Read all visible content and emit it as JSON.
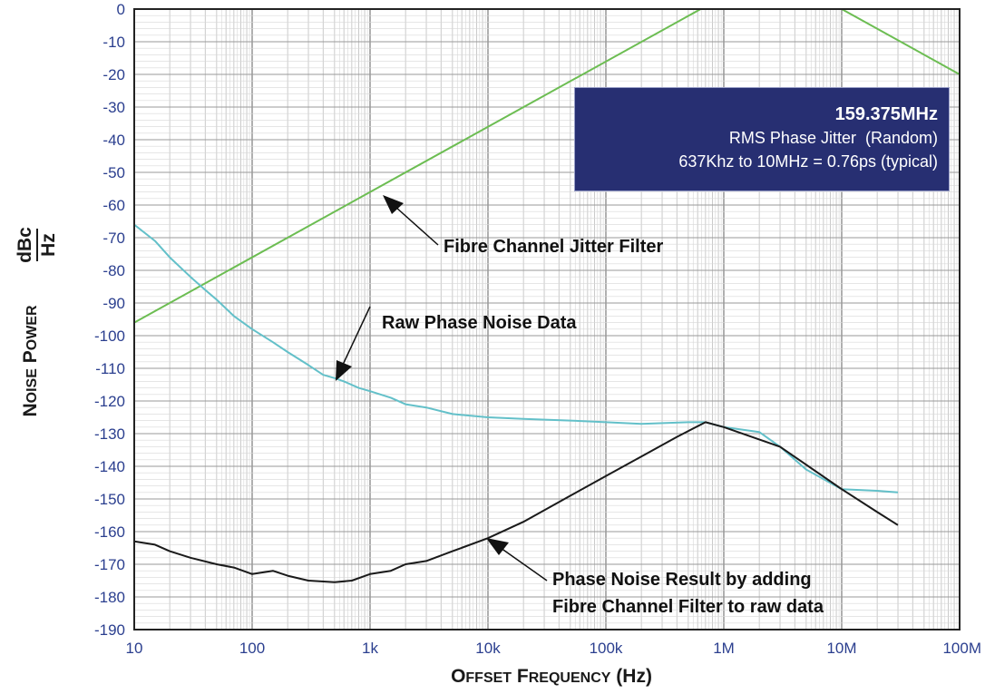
{
  "chart_data": {
    "type": "line",
    "x_scale": "log",
    "xlim": [
      10,
      100000000
    ],
    "ylim": [
      -190,
      0
    ],
    "xlabel": {
      "word1_cap": "O",
      "word1_rest": "FFSET",
      "word2_cap": "F",
      "word2_rest": "REQUENCY",
      "unit": "(Hz)"
    },
    "ylabel": {
      "word1_cap": "N",
      "word1_rest": "OISE",
      "word2_cap": "P",
      "word2_rest": "OWER",
      "unit_num": "dBc",
      "unit_den": "Hz"
    },
    "x_ticks": [
      {
        "value": 10,
        "label": "10"
      },
      {
        "value": 100,
        "label": "100"
      },
      {
        "value": 1000,
        "label": "1k"
      },
      {
        "value": 10000,
        "label": "10k"
      },
      {
        "value": 100000,
        "label": "100k"
      },
      {
        "value": 1000000,
        "label": "1M"
      },
      {
        "value": 10000000,
        "label": "10M"
      },
      {
        "value": 100000000,
        "label": "100M"
      }
    ],
    "y_ticks": [
      {
        "value": 0,
        "label": "0"
      },
      {
        "value": -10,
        "label": "-10"
      },
      {
        "value": -20,
        "label": "-20"
      },
      {
        "value": -30,
        "label": "-30"
      },
      {
        "value": -40,
        "label": "-40"
      },
      {
        "value": -50,
        "label": "-50"
      },
      {
        "value": -60,
        "label": "-60"
      },
      {
        "value": -70,
        "label": "-70"
      },
      {
        "value": -80,
        "label": "-80"
      },
      {
        "value": -90,
        "label": "-90"
      },
      {
        "value": -100,
        "label": "-100"
      },
      {
        "value": -110,
        "label": "-110"
      },
      {
        "value": -120,
        "label": "-120"
      },
      {
        "value": -130,
        "label": "-130"
      },
      {
        "value": -140,
        "label": "-140"
      },
      {
        "value": -150,
        "label": "-150"
      },
      {
        "value": -160,
        "label": "-160"
      },
      {
        "value": -170,
        "label": "-170"
      },
      {
        "value": -180,
        "label": "-180"
      },
      {
        "value": -190,
        "label": "-190"
      }
    ],
    "grid": true,
    "series": [
      {
        "name": "Fibre Channel Jitter Filter",
        "color": "#6cbd52",
        "x": [
          10,
          637000,
          10000000,
          100000000
        ],
        "y": [
          -96,
          0,
          0,
          -20
        ]
      },
      {
        "name": "Raw Phase Noise Data",
        "color": "#63c0c9",
        "x": [
          10,
          15,
          20,
          30,
          40,
          50,
          70,
          100,
          150,
          200,
          300,
          400,
          500,
          600,
          800,
          1000,
          1500,
          2000,
          3000,
          5000,
          10000,
          20000,
          50000,
          100000,
          200000,
          500000,
          700000,
          1000000,
          2000000,
          3000000,
          5000000,
          10000000,
          20000000,
          30000000
        ],
        "y": [
          -66,
          -71,
          -76,
          -82,
          -86,
          -89,
          -94,
          -98,
          -102,
          -105,
          -109,
          -112,
          -113,
          -114,
          -116,
          -117,
          -119,
          -121,
          -122,
          -124,
          -125,
          -125.5,
          -126,
          -126.5,
          -127,
          -126.5,
          -126.5,
          -128,
          -129.5,
          -134,
          -141,
          -147,
          -147.5,
          -148
        ]
      },
      {
        "name": "Phase Noise Result by adding Fibre Channel Filter to raw data",
        "color": "#1a1a1a",
        "x": [
          10,
          15,
          20,
          30,
          50,
          70,
          100,
          150,
          200,
          300,
          500,
          700,
          1000,
          1500,
          2000,
          3000,
          5000,
          10000,
          20000,
          50000,
          100000,
          200000,
          400000,
          700000,
          1000000,
          3000000,
          10000000,
          20000000,
          30000000
        ],
        "y": [
          -163,
          -164,
          -166,
          -168,
          -170,
          -171,
          -173,
          -172,
          -173.5,
          -175,
          -175.5,
          -175,
          -173,
          -172,
          -170,
          -169,
          -166,
          -162,
          -157,
          -149,
          -143,
          -137,
          -131,
          -126.5,
          -128,
          -134,
          -147,
          -154,
          -158
        ]
      }
    ],
    "annotations": {
      "filter_label": "Fibre Channel Jitter Filter",
      "raw_label": "Raw Phase Noise Data",
      "result_label_line1": "Phase Noise Result by adding",
      "result_label_line2": "Fibre Channel Filter to raw data"
    },
    "info_box": {
      "line1": "159.375MHz",
      "line2": "RMS Phase Jitter  (Random)",
      "line3": "637Khz to 10MHz = 0.76ps (typical)",
      "background": "#272f72"
    }
  }
}
